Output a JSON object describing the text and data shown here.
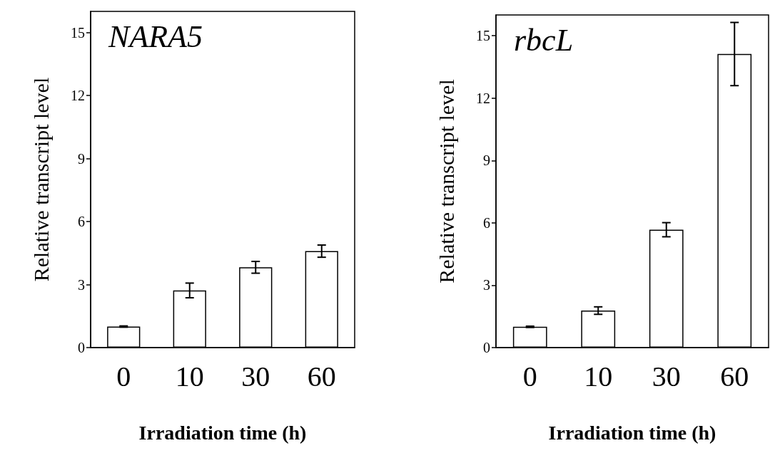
{
  "chart_data": [
    {
      "type": "bar",
      "title": "NARA5",
      "xlabel": "Irradiation time (h)",
      "ylabel": "Relative transcript level",
      "categories": [
        "0",
        "10",
        "30",
        "60"
      ],
      "values": [
        1.0,
        2.72,
        3.82,
        4.59
      ],
      "errors": [
        0.03,
        0.35,
        0.28,
        0.29
      ],
      "color": "#ffffff",
      "ylim": [
        0,
        16
      ],
      "yticks": [
        0,
        3,
        6,
        9,
        12,
        15
      ],
      "grid": false
    },
    {
      "type": "bar",
      "title": "rbcL",
      "xlabel": "Irradiation time (h)",
      "ylabel": "Relative transcript level",
      "categories": [
        "0",
        "10",
        "30",
        "60"
      ],
      "values": [
        1.0,
        1.78,
        5.67,
        14.12
      ],
      "errors": [
        0.03,
        0.18,
        0.34,
        1.52
      ],
      "color": "#ffffff",
      "ylim": [
        0,
        16
      ],
      "yticks": [
        0,
        3,
        6,
        9,
        12,
        15
      ],
      "grid": false
    }
  ]
}
